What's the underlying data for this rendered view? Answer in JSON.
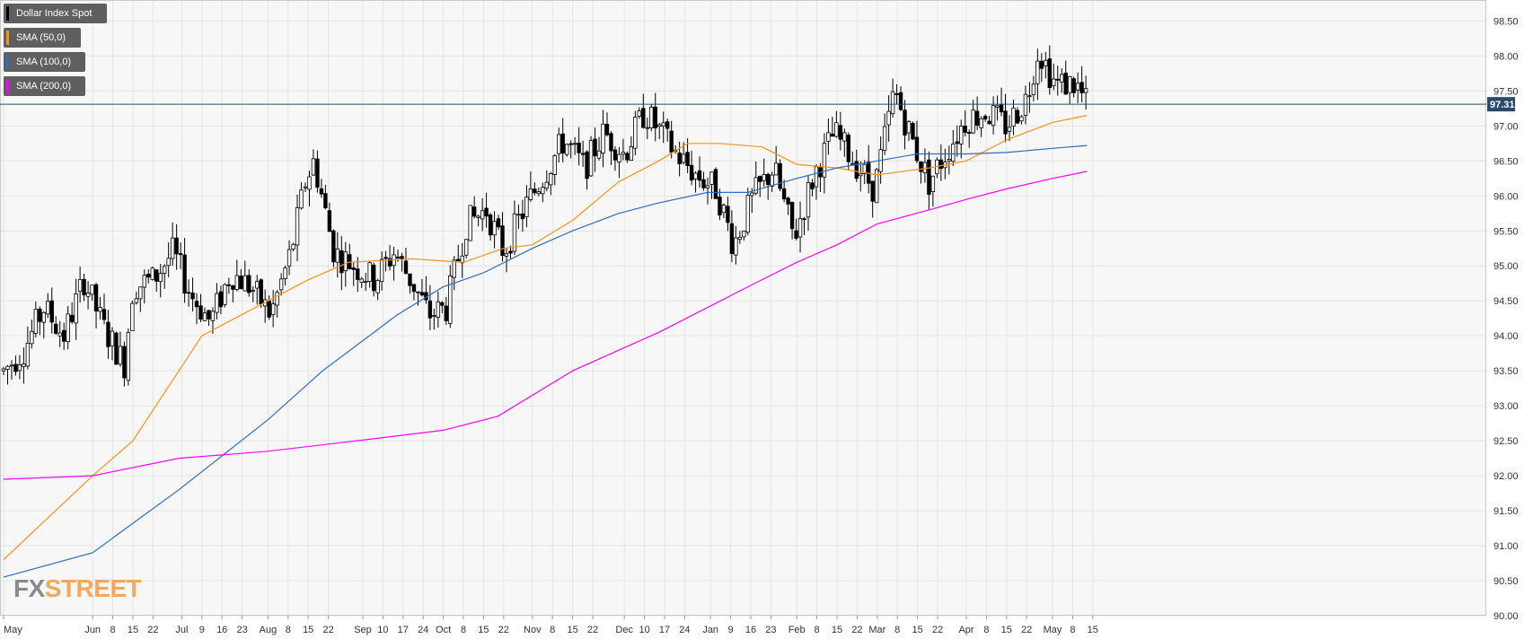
{
  "legend": [
    {
      "label": "Dollar Index Spot",
      "color": "#000000"
    },
    {
      "label": "SMA (50,0)",
      "color": "#f7931a"
    },
    {
      "label": "SMA (100,0)",
      "color": "#2d6cc0"
    },
    {
      "label": "SMA (200,0)",
      "color": "#ff00ff"
    }
  ],
  "logo": {
    "part1": "FX",
    "part2": "STREET"
  },
  "chart_data": {
    "type": "candlestick",
    "symbol": "Dollar Index Spot",
    "last_price_label": "97.31",
    "last_price": 97.31,
    "ylim": [
      90.0,
      98.8
    ],
    "y_ticks": [
      "98.50",
      "98.00",
      "97.50",
      "97.00",
      "96.50",
      "96.00",
      "95.50",
      "95.00",
      "94.50",
      "94.00",
      "93.50",
      "93.00",
      "92.50",
      "92.00",
      "91.50",
      "91.00",
      "90.50",
      "90.00"
    ],
    "x_ticks": [
      "May",
      "Jun",
      "8",
      "15",
      "22",
      "Jul",
      "9",
      "16",
      "23",
      "Aug",
      "8",
      "15",
      "22",
      "Sep",
      "10",
      "17",
      "24",
      "Oct",
      "8",
      "15",
      "22",
      "Nov",
      "8",
      "15",
      "22",
      "Dec",
      "10",
      "17",
      "24",
      "Jan",
      "9",
      "16",
      "23",
      "Feb",
      "8",
      "15",
      "22",
      "Mar",
      "8",
      "15",
      "22",
      "Apr",
      "8",
      "15",
      "22",
      "May",
      "8",
      "15"
    ],
    "grid": true,
    "candle_anchors": [
      [
        "2018-05-01",
        93.5
      ],
      [
        "2018-05-08",
        93.8
      ],
      [
        "2018-05-15",
        94.4
      ],
      [
        "2018-05-22",
        94.0
      ],
      [
        "2018-05-29",
        94.8
      ],
      [
        "2018-06-05",
        94.1
      ],
      [
        "2018-06-12",
        93.6
      ],
      [
        "2018-06-15",
        94.7
      ],
      [
        "2018-06-22",
        94.8
      ],
      [
        "2018-06-29",
        95.2
      ],
      [
        "2018-07-05",
        94.6
      ],
      [
        "2018-07-12",
        94.2
      ],
      [
        "2018-07-19",
        94.9
      ],
      [
        "2018-07-26",
        94.7
      ],
      [
        "2018-08-02",
        94.3
      ],
      [
        "2018-08-09",
        95.2
      ],
      [
        "2018-08-14",
        96.2
      ],
      [
        "2018-08-17",
        96.5
      ],
      [
        "2018-08-24",
        95.2
      ],
      [
        "2018-08-31",
        95.0
      ],
      [
        "2018-09-07",
        94.8
      ],
      [
        "2018-09-14",
        95.2
      ],
      [
        "2018-09-21",
        94.7
      ],
      [
        "2018-09-26",
        94.3
      ],
      [
        "2018-10-02",
        94.4
      ],
      [
        "2018-10-09",
        95.6
      ],
      [
        "2018-10-16",
        95.8
      ],
      [
        "2018-10-22",
        95.2
      ],
      [
        "2018-10-29",
        95.8
      ],
      [
        "2018-11-05",
        96.3
      ],
      [
        "2018-11-12",
        96.8
      ],
      [
        "2018-11-19",
        96.4
      ],
      [
        "2018-11-26",
        96.9
      ],
      [
        "2018-12-03",
        96.6
      ],
      [
        "2018-12-10",
        97.2
      ],
      [
        "2018-12-14",
        97.0
      ],
      [
        "2018-12-21",
        96.6
      ],
      [
        "2018-12-28",
        96.3
      ],
      [
        "2019-01-04",
        96.1
      ],
      [
        "2019-01-10",
        95.3
      ],
      [
        "2019-01-17",
        96.0
      ],
      [
        "2019-01-24",
        96.4
      ],
      [
        "2019-01-31",
        95.4
      ],
      [
        "2019-02-07",
        96.3
      ],
      [
        "2019-02-14",
        96.9
      ],
      [
        "2019-02-21",
        96.5
      ],
      [
        "2019-02-28",
        96.1
      ],
      [
        "2019-03-07",
        97.5
      ],
      [
        "2019-03-14",
        96.7
      ],
      [
        "2019-03-19",
        96.2
      ],
      [
        "2019-03-26",
        96.7
      ],
      [
        "2019-04-01",
        97.1
      ],
      [
        "2019-04-08",
        97.2
      ],
      [
        "2019-04-15",
        97.0
      ],
      [
        "2019-04-22",
        97.4
      ],
      [
        "2019-04-26",
        98.1
      ],
      [
        "2019-05-02",
        97.6
      ],
      [
        "2019-05-09",
        97.6
      ],
      [
        "2019-05-13",
        97.31
      ]
    ],
    "series": [
      {
        "name": "SMA (50,0)",
        "color": "#f7931a",
        "points": [
          [
            "2018-05-01",
            90.8
          ],
          [
            "2018-06-01",
            92.0
          ],
          [
            "2018-06-15",
            92.5
          ],
          [
            "2018-07-01",
            93.5
          ],
          [
            "2018-07-09",
            94.0
          ],
          [
            "2018-08-01",
            94.5
          ],
          [
            "2018-08-15",
            94.8
          ],
          [
            "2018-08-29",
            95.05
          ],
          [
            "2018-09-20",
            95.1
          ],
          [
            "2018-10-08",
            95.05
          ],
          [
            "2018-10-22",
            95.25
          ],
          [
            "2018-11-01",
            95.3
          ],
          [
            "2018-11-15",
            95.65
          ],
          [
            "2018-12-01",
            96.2
          ],
          [
            "2018-12-15",
            96.5
          ],
          [
            "2018-12-25",
            96.75
          ],
          [
            "2019-01-05",
            96.75
          ],
          [
            "2019-01-20",
            96.7
          ],
          [
            "2019-02-01",
            96.45
          ],
          [
            "2019-02-15",
            96.4
          ],
          [
            "2019-03-01",
            96.3
          ],
          [
            "2019-03-19",
            96.4
          ],
          [
            "2019-04-01",
            96.5
          ],
          [
            "2019-04-15",
            96.8
          ],
          [
            "2019-05-01",
            97.05
          ],
          [
            "2019-05-13",
            97.15
          ]
        ]
      },
      {
        "name": "SMA (100,0)",
        "color": "#2d6cc0",
        "points": [
          [
            "2018-05-01",
            90.55
          ],
          [
            "2018-06-01",
            90.9
          ],
          [
            "2018-07-01",
            91.8
          ],
          [
            "2018-08-01",
            92.8
          ],
          [
            "2018-08-20",
            93.5
          ],
          [
            "2018-09-15",
            94.3
          ],
          [
            "2018-10-01",
            94.7
          ],
          [
            "2018-10-15",
            94.9
          ],
          [
            "2018-11-01",
            95.25
          ],
          [
            "2018-11-15",
            95.5
          ],
          [
            "2018-12-01",
            95.75
          ],
          [
            "2018-12-15",
            95.9
          ],
          [
            "2019-01-01",
            96.05
          ],
          [
            "2019-01-15",
            96.05
          ],
          [
            "2019-02-01",
            96.25
          ],
          [
            "2019-02-15",
            96.4
          ],
          [
            "2019-03-01",
            96.5
          ],
          [
            "2019-03-15",
            96.6
          ],
          [
            "2019-04-01",
            96.6
          ],
          [
            "2019-04-15",
            96.62
          ],
          [
            "2019-05-01",
            96.68
          ],
          [
            "2019-05-13",
            96.72
          ]
        ]
      },
      {
        "name": "SMA (200,0)",
        "color": "#ff00ff",
        "points": [
          [
            "2018-05-01",
            91.95
          ],
          [
            "2018-06-01",
            92.0
          ],
          [
            "2018-07-01",
            92.25
          ],
          [
            "2018-08-01",
            92.35
          ],
          [
            "2018-09-01",
            92.5
          ],
          [
            "2018-10-01",
            92.65
          ],
          [
            "2018-10-20",
            92.85
          ],
          [
            "2018-11-15",
            93.5
          ],
          [
            "2018-12-15",
            94.05
          ],
          [
            "2019-01-15",
            94.7
          ],
          [
            "2019-02-01",
            95.05
          ],
          [
            "2019-02-15",
            95.3
          ],
          [
            "2019-03-01",
            95.6
          ],
          [
            "2019-03-19",
            95.8
          ],
          [
            "2019-04-01",
            95.95
          ],
          [
            "2019-04-15",
            96.1
          ],
          [
            "2019-05-01",
            96.25
          ],
          [
            "2019-05-13",
            96.35
          ]
        ]
      }
    ]
  }
}
